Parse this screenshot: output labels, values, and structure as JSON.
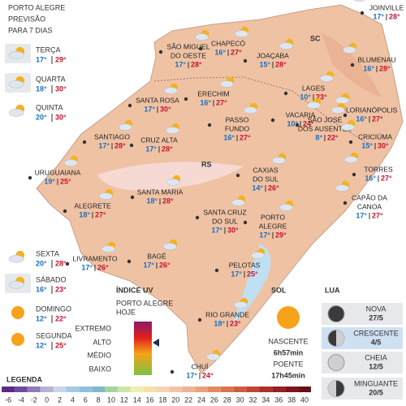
{
  "header": {
    "title": "PORTO ALEGRE",
    "subtitle": [
      "PREVISÃO",
      "PARA 7 DIAS"
    ]
  },
  "forecast": [
    {
      "day": "TERÇA",
      "min": "17°",
      "max": "29°"
    },
    {
      "day": "QUARTA",
      "min": "18°",
      "max": "30°"
    },
    {
      "day": "QUINTA",
      "min": "20°",
      "max": "30°"
    },
    {
      "day": "SEXTA",
      "min": "20°",
      "max": "28°"
    },
    {
      "day": "SÁBADO",
      "min": "16°",
      "max": "23°"
    },
    {
      "day": "DOMINGO",
      "min": "12°",
      "max": "22°"
    },
    {
      "day": "SEGUNDA",
      "min": "12°",
      "max": "25°"
    }
  ],
  "regions": [
    "SC",
    "RS"
  ],
  "cities": [
    {
      "name": [
        "SÃO MIGUEL",
        "DO OESTE"
      ],
      "min": "17°",
      "max": "28°"
    },
    {
      "name": [
        "CHAPECÓ"
      ],
      "min": "16°",
      "max": "27°"
    },
    {
      "name": [
        "JOAÇABA"
      ],
      "min": "15°",
      "max": "28°"
    },
    {
      "name": [
        "JOINVILLE"
      ],
      "min": "17°",
      "max": "28°"
    },
    {
      "name": [
        "BLUMENAU"
      ],
      "min": "16°",
      "max": "28°"
    },
    {
      "name": [
        "LAGES"
      ],
      "min": "10°",
      "max": "23°"
    },
    {
      "name": [
        "FLORIANÓPOLIS"
      ],
      "min": "16°",
      "max": "27°"
    },
    {
      "name": [
        "SANTA ROSA"
      ],
      "min": "17°",
      "max": "30°"
    },
    {
      "name": [
        "ERECHIM"
      ],
      "min": "16°",
      "max": "27°"
    },
    {
      "name": [
        "PASSO",
        "FUNDO"
      ],
      "min": "16°",
      "max": "27°"
    },
    {
      "name": [
        "VACARIA"
      ],
      "min": "10°",
      "max": "24°"
    },
    {
      "name": [
        "SÃO JOSÉ",
        "DOS AUSENTES"
      ],
      "min": "8°",
      "max": "22°"
    },
    {
      "name": [
        "CRICIÚMA"
      ],
      "min": "15°",
      "max": "30°"
    },
    {
      "name": [
        "SANTIAGO"
      ],
      "min": "17°",
      "max": "28°"
    },
    {
      "name": [
        "CRUZ ALTA"
      ],
      "min": "17°",
      "max": "28°"
    },
    {
      "name": [
        "TORRES"
      ],
      "min": "16°",
      "max": "27°"
    },
    {
      "name": [
        "URUGUAIANA"
      ],
      "min": "19°",
      "max": "25°"
    },
    {
      "name": [
        "SANTA MARIA"
      ],
      "min": "18°",
      "max": "28°"
    },
    {
      "name": [
        "CAXIAS",
        "DO SUL"
      ],
      "min": "14°",
      "max": "26°"
    },
    {
      "name": [
        "CAPÃO DA",
        "CANOA"
      ],
      "min": "17°",
      "max": "27°"
    },
    {
      "name": [
        "ALEGRETE"
      ],
      "min": "18°",
      "max": "27°"
    },
    {
      "name": [
        "SANTA CRUZ",
        "DO SUL"
      ],
      "min": "17°",
      "max": "30°"
    },
    {
      "name": [
        "PORTO",
        "ALEGRE"
      ],
      "min": "17°",
      "max": "29°"
    },
    {
      "name": [
        "LIVRAMENTO"
      ],
      "min": "17°",
      "max": "26°"
    },
    {
      "name": [
        "BAGÉ"
      ],
      "min": "17°",
      "max": "26°"
    },
    {
      "name": [
        "PELOTAS"
      ],
      "min": "17°",
      "max": "25°"
    },
    {
      "name": [
        "RIO GRANDE"
      ],
      "min": "18°",
      "max": "23°"
    },
    {
      "name": [
        "CHUÍ"
      ],
      "min": "17°",
      "max": "24°"
    }
  ],
  "uv": {
    "title": "ÍNDICE UV",
    "place": "PORTO ALEGRE",
    "when": "HOJE",
    "levels": [
      "EXTREMO",
      "ALTO",
      "MÉDIO",
      "BAIXO"
    ],
    "current": "ALTO"
  },
  "sun": {
    "title": "SOL",
    "sunrise_label": "NASCENTE",
    "sunrise": "6h57min",
    "sunset_label": "POENTE",
    "sunset": "17h45min"
  },
  "moon": {
    "title": "LUA",
    "phases": [
      {
        "name": "NOVA",
        "date": "27/5"
      },
      {
        "name": "CRESCENTE",
        "date": "4/5"
      },
      {
        "name": "CHEIA",
        "date": "12/5"
      },
      {
        "name": "MINGUANTE",
        "date": "20/5"
      }
    ]
  },
  "legend": {
    "title": "LEGENDA",
    "ticks": [
      -6,
      -4,
      -2,
      0,
      2,
      4,
      6,
      8,
      10,
      12,
      14,
      16,
      18,
      20,
      22,
      24,
      26,
      28,
      30,
      32,
      34,
      36,
      38,
      40
    ]
  }
}
